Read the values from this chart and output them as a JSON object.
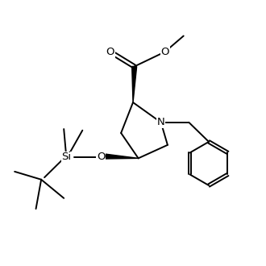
{
  "figure_size": [
    3.3,
    3.3
  ],
  "dpi": 100,
  "background": "#ffffff",
  "line_color": "#000000",
  "line_width": 1.4,
  "font_size": 9.5,
  "bond_color": "#000000",
  "xlim": [
    0,
    10
  ],
  "ylim": [
    0,
    10
  ]
}
